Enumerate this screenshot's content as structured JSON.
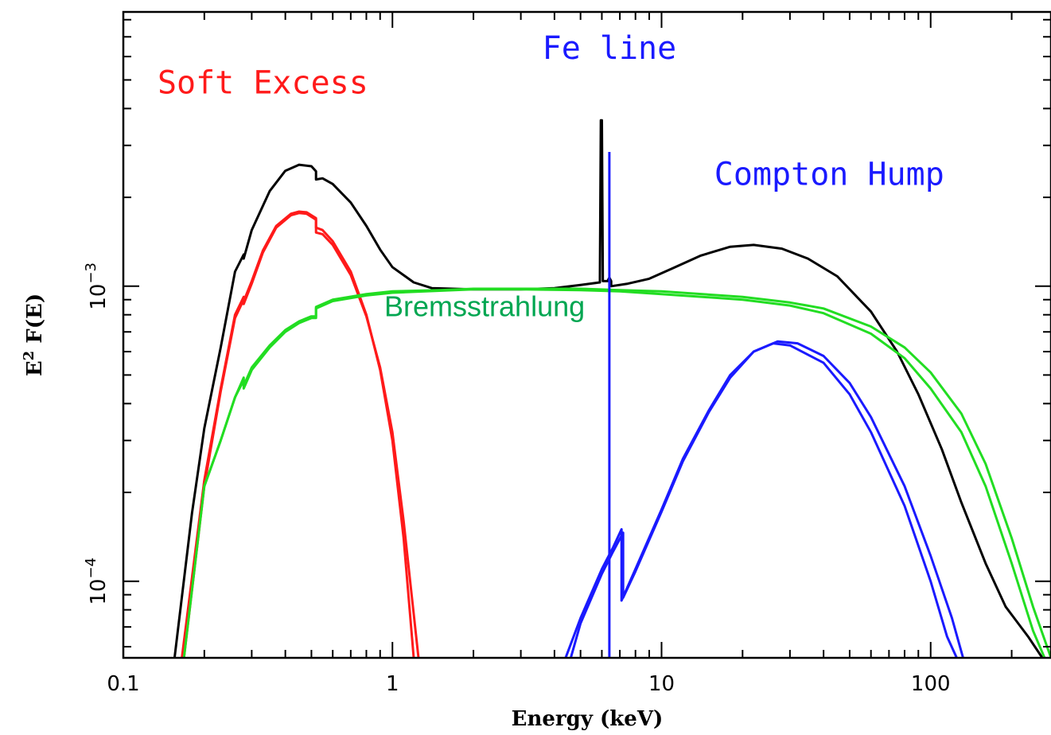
{
  "chart_data": {
    "type": "line",
    "title": "",
    "xlabel": "Energy (keV)",
    "ylabel_base": "E",
    "ylabel_sup": "2",
    "ylabel_rest": " F(E)",
    "xscale": "log",
    "yscale": "log",
    "xlim": [
      0.1,
      280
    ],
    "ylim": [
      5.5e-05,
      0.0085
    ],
    "grid": false,
    "legend": "none",
    "x_ticks": [
      {
        "value": 0.1,
        "label": "0.1"
      },
      {
        "value": 1,
        "label": "1"
      },
      {
        "value": 10,
        "label": "10"
      },
      {
        "value": 100,
        "label": "100"
      }
    ],
    "y_ticks": [
      {
        "value": 0.0001,
        "base": "10",
        "exp": "−4"
      },
      {
        "value": 0.001,
        "base": "10",
        "exp": "−3"
      }
    ],
    "annotations": [
      {
        "id": "soft",
        "text": "Soft Excess",
        "color": "#ff1a1a",
        "x": 0.33,
        "y": 0.0045,
        "style": "mono"
      },
      {
        "id": "fe",
        "text": "Fe line",
        "color": "#1a1aff",
        "x": 6.4,
        "y": 0.0059,
        "style": "mono"
      },
      {
        "id": "compton",
        "text": "Compton Hump",
        "color": "#1a1aff",
        "x": 42,
        "y": 0.0022,
        "style": "mono"
      },
      {
        "id": "brems",
        "text": "Bremsstrahlung",
        "color": "#00a651",
        "x": 2.2,
        "y": 0.00079,
        "style": "sans"
      }
    ],
    "series": [
      {
        "color": "#000000",
        "values": [
          [
            0.155,
            5.5e-05
          ],
          [
            0.18,
            0.00017
          ],
          [
            0.2,
            0.00033
          ],
          [
            0.23,
            0.00062
          ],
          [
            0.26,
            0.00112
          ],
          [
            0.28,
            0.00128
          ],
          [
            0.28,
            0.00124
          ],
          [
            0.3,
            0.00155
          ],
          [
            0.35,
            0.0021
          ],
          [
            0.4,
            0.00246
          ],
          [
            0.45,
            0.00258
          ],
          [
            0.5,
            0.00255
          ],
          [
            0.52,
            0.00245
          ],
          [
            0.52,
            0.0023
          ],
          [
            0.55,
            0.00232
          ],
          [
            0.6,
            0.00222
          ],
          [
            0.7,
            0.00192
          ],
          [
            0.8,
            0.0016
          ],
          [
            0.9,
            0.00133
          ],
          [
            1.0,
            0.00116
          ],
          [
            1.2,
            0.00103
          ],
          [
            1.4,
            0.000985
          ],
          [
            2,
            0.000975
          ],
          [
            3,
            0.000975
          ],
          [
            4,
            0.000985
          ],
          [
            5,
            0.00101
          ],
          [
            5.9,
            0.00103
          ],
          [
            5.9,
            0.00106
          ],
          [
            5.95,
            0.00365
          ],
          [
            6.0,
            0.00365
          ],
          [
            6.05,
            0.00104
          ],
          [
            6.3,
            0.00104
          ],
          [
            6.4,
            0.00107
          ],
          [
            6.5,
            0.00104
          ],
          [
            6.5,
            0.001
          ],
          [
            7.5,
            0.00102
          ],
          [
            9,
            0.00106
          ],
          [
            11,
            0.00115
          ],
          [
            14,
            0.00127
          ],
          [
            18,
            0.00136
          ],
          [
            22,
            0.00138
          ],
          [
            28,
            0.00134
          ],
          [
            35,
            0.00124
          ],
          [
            45,
            0.00108
          ],
          [
            60,
            0.00082
          ],
          [
            75,
            0.0006
          ],
          [
            90,
            0.00043
          ],
          [
            110,
            0.00028
          ],
          [
            130,
            0.000185
          ],
          [
            160,
            0.000115
          ],
          [
            190,
            8.2e-05
          ],
          [
            230,
            6.5e-05
          ],
          [
            260,
            5.5e-05
          ]
        ]
      },
      {
        "color": "#ff1a1a",
        "values": [
          [
            0.165,
            5.5e-05
          ],
          [
            0.2,
            0.00022
          ],
          [
            0.23,
            0.00045
          ],
          [
            0.26,
            0.0008
          ],
          [
            0.28,
            0.00092
          ],
          [
            0.28,
            0.00089
          ],
          [
            0.3,
            0.00104
          ],
          [
            0.33,
            0.00132
          ],
          [
            0.37,
            0.0016
          ],
          [
            0.42,
            0.00176
          ],
          [
            0.45,
            0.00179
          ],
          [
            0.48,
            0.00178
          ],
          [
            0.52,
            0.0017
          ],
          [
            0.52,
            0.00158
          ],
          [
            0.55,
            0.00155
          ],
          [
            0.6,
            0.00142
          ],
          [
            0.7,
            0.00112
          ],
          [
            0.8,
            0.0008
          ],
          [
            0.9,
            0.00052
          ],
          [
            1.0,
            0.0003
          ],
          [
            1.1,
            0.00014
          ],
          [
            1.2,
            5.5e-05
          ]
        ]
      },
      {
        "color": "#ff1a1a",
        "values": [
          [
            0.168,
            5.5e-05
          ],
          [
            0.2,
            0.00021
          ],
          [
            0.23,
            0.00044
          ],
          [
            0.26,
            0.00078
          ],
          [
            0.28,
            0.0009
          ],
          [
            0.28,
            0.00087
          ],
          [
            0.3,
            0.00102
          ],
          [
            0.33,
            0.0013
          ],
          [
            0.37,
            0.00158
          ],
          [
            0.42,
            0.00174
          ],
          [
            0.45,
            0.00177
          ],
          [
            0.48,
            0.00176
          ],
          [
            0.52,
            0.00168
          ],
          [
            0.52,
            0.00152
          ],
          [
            0.55,
            0.0015
          ],
          [
            0.6,
            0.00138
          ],
          [
            0.7,
            0.00109
          ],
          [
            0.8,
            0.00079
          ],
          [
            0.9,
            0.00053
          ],
          [
            1.0,
            0.00032
          ],
          [
            1.1,
            0.00016
          ],
          [
            1.25,
            5.5e-05
          ]
        ]
      },
      {
        "color": "#22dd22",
        "values": [
          [
            0.168,
            5.5e-05
          ],
          [
            0.2,
            0.00021
          ],
          [
            0.23,
            0.0003
          ],
          [
            0.26,
            0.00042
          ],
          [
            0.28,
            0.00048
          ],
          [
            0.28,
            0.00045
          ],
          [
            0.3,
            0.00052
          ],
          [
            0.35,
            0.00062
          ],
          [
            0.4,
            0.0007
          ],
          [
            0.45,
            0.00075
          ],
          [
            0.5,
            0.00078
          ],
          [
            0.52,
            0.00078
          ],
          [
            0.52,
            0.00084
          ],
          [
            0.6,
            0.00089
          ],
          [
            0.8,
            0.00093
          ],
          [
            1.0,
            0.00095
          ],
          [
            1.5,
            0.000965
          ],
          [
            2,
            0.000975
          ],
          [
            3,
            0.000975
          ],
          [
            5,
            0.00097
          ],
          [
            7,
            0.00096
          ],
          [
            10,
            0.00094
          ],
          [
            20,
            0.0009
          ],
          [
            30,
            0.00086
          ],
          [
            40,
            0.00081
          ],
          [
            60,
            0.00069
          ],
          [
            80,
            0.00057
          ],
          [
            100,
            0.00045
          ],
          [
            130,
            0.00032
          ],
          [
            160,
            0.00021
          ],
          [
            200,
            0.000115
          ],
          [
            240,
            6.8e-05
          ],
          [
            265,
            5.5e-05
          ]
        ]
      },
      {
        "color": "#22dd22",
        "values": [
          [
            0.2,
            0.00021
          ],
          [
            0.23,
            0.0003
          ],
          [
            0.26,
            0.00042
          ],
          [
            0.28,
            0.00049
          ],
          [
            0.28,
            0.00046
          ],
          [
            0.3,
            0.00053
          ],
          [
            0.35,
            0.00063
          ],
          [
            0.4,
            0.00071
          ],
          [
            0.45,
            0.00076
          ],
          [
            0.5,
            0.00079
          ],
          [
            0.52,
            0.00079
          ],
          [
            0.52,
            0.00085
          ],
          [
            0.6,
            0.0009
          ],
          [
            0.8,
            0.00094
          ],
          [
            1.0,
            0.00096
          ],
          [
            1.5,
            0.00097
          ],
          [
            2,
            0.00098
          ],
          [
            3,
            0.00098
          ],
          [
            5,
            0.00098
          ],
          [
            7,
            0.00097
          ],
          [
            10,
            0.00096
          ],
          [
            20,
            0.00092
          ],
          [
            30,
            0.00088
          ],
          [
            40,
            0.00084
          ],
          [
            60,
            0.00073
          ],
          [
            80,
            0.00062
          ],
          [
            100,
            0.00051
          ],
          [
            130,
            0.00037
          ],
          [
            160,
            0.00025
          ],
          [
            200,
            0.00014
          ],
          [
            240,
            8.2e-05
          ],
          [
            280,
            5.5e-05
          ]
        ]
      },
      {
        "color": "#1a1aff",
        "values": [
          [
            4.4,
            5.5e-05
          ],
          [
            5,
            7.5e-05
          ],
          [
            6,
            0.00011
          ],
          [
            6.6,
            0.00013
          ],
          [
            7.1,
            0.00015
          ],
          [
            7.1,
            8.6e-05
          ],
          [
            8,
            0.00011
          ],
          [
            10,
            0.000175
          ],
          [
            12,
            0.00026
          ],
          [
            15,
            0.00038
          ],
          [
            18,
            0.0005
          ],
          [
            22,
            0.0006
          ],
          [
            26,
            0.00064
          ],
          [
            30,
            0.00063
          ],
          [
            40,
            0.00055
          ],
          [
            50,
            0.00043
          ],
          [
            60,
            0.00032
          ],
          [
            80,
            0.00018
          ],
          [
            100,
            0.0001
          ],
          [
            115,
            6.5e-05
          ],
          [
            125,
            5.5e-05
          ]
        ]
      },
      {
        "color": "#1a1aff",
        "values": [
          [
            4.6,
            5.5e-05
          ],
          [
            5,
            7.2e-05
          ],
          [
            6,
            0.000106
          ],
          [
            6.6,
            0.000126
          ],
          [
            7.2,
            0.000146
          ],
          [
            7.2,
            8.8e-05
          ],
          [
            8,
            0.000108
          ],
          [
            10,
            0.000172
          ],
          [
            12,
            0.000255
          ],
          [
            15,
            0.000375
          ],
          [
            18,
            0.00049
          ],
          [
            22,
            0.0006
          ],
          [
            27,
            0.00065
          ],
          [
            32,
            0.00064
          ],
          [
            40,
            0.00058
          ],
          [
            50,
            0.00047
          ],
          [
            60,
            0.00036
          ],
          [
            80,
            0.00021
          ],
          [
            100,
            0.000122
          ],
          [
            120,
            7.5e-05
          ],
          [
            132,
            5.5e-05
          ]
        ]
      },
      {
        "color": "#1a1aff",
        "values": [
          [
            6.4,
            5.5e-05
          ],
          [
            6.4,
            0.00285
          ]
        ]
      }
    ]
  }
}
